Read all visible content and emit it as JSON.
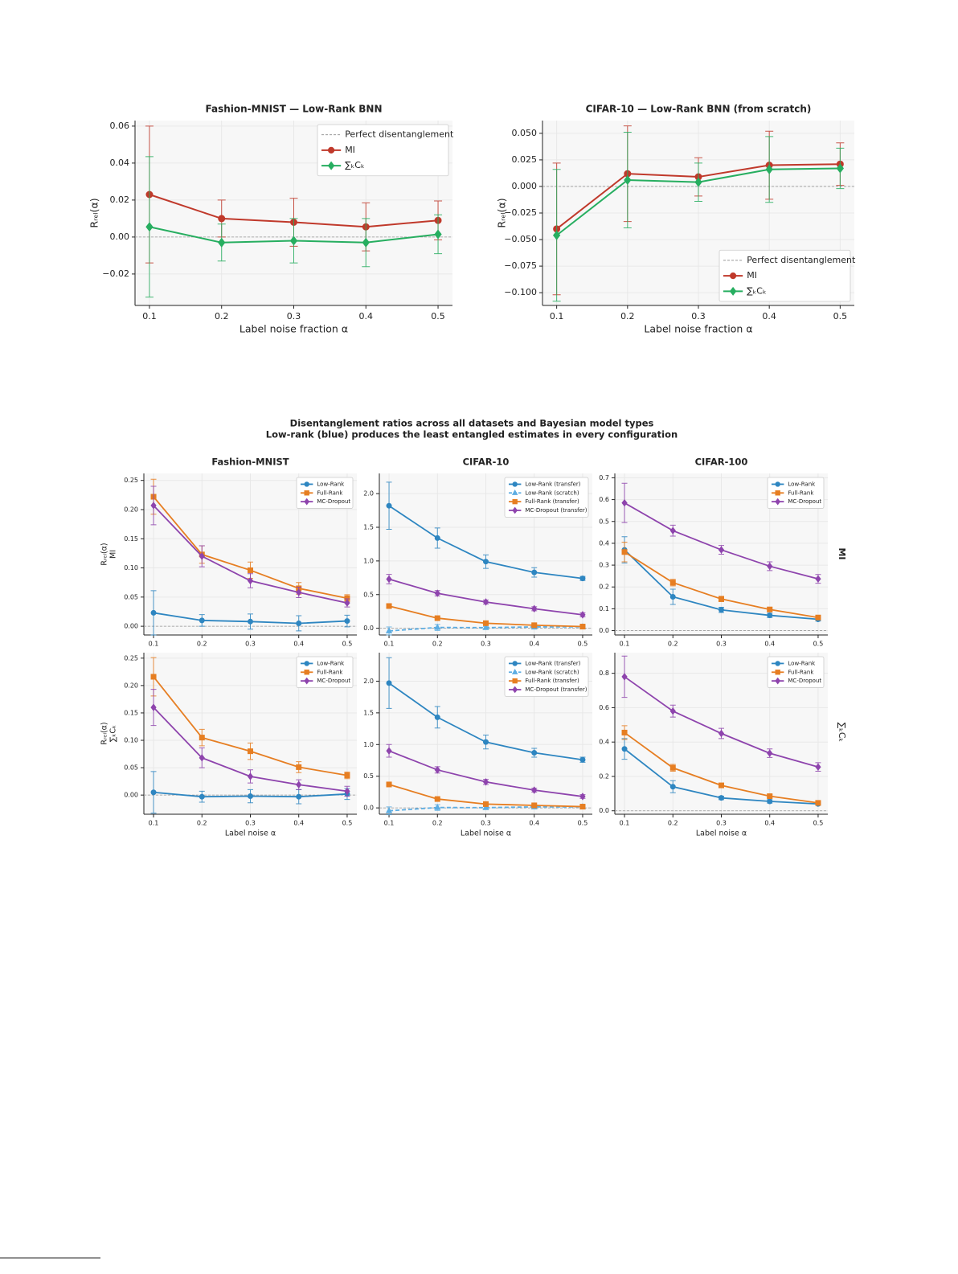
{
  "figure": {
    "title_lines": [
      "Disentanglement ratios across all datasets and Bayesian model types",
      "Low-rank (blue) produces the least entangled estimates in every configuration"
    ],
    "row_labels": [
      "MI",
      "∑ₖCₖ"
    ]
  },
  "chart_data": [
    {
      "type": "line",
      "title": "Fashion-MNIST — Low-Rank BNN",
      "xlabel": "Label noise fraction α",
      "ylabel": "Rᵣₑₗ(α)",
      "x": [
        0.1,
        0.2,
        0.3,
        0.4,
        0.5
      ],
      "xlim": [
        0.08,
        0.52
      ],
      "xticks": [
        0.1,
        0.2,
        0.3,
        0.4,
        0.5
      ],
      "ylim": [
        -0.037,
        0.063
      ],
      "yticks": [
        {
          "value": -0.02,
          "label": "−0.02"
        },
        {
          "value": 0,
          "label": "0.00"
        },
        0.02,
        0.04,
        0.06
      ],
      "grid": true,
      "legend": "upper right",
      "reference": {
        "value": 0,
        "name": "Perfect disentanglement"
      },
      "series": [
        {
          "name": "MI",
          "color": "#c0392b",
          "marker": "circle",
          "values": [
            0.023,
            0.01,
            0.008,
            0.0055,
            0.009
          ],
          "errors": [
            0.037,
            0.01,
            0.013,
            0.013,
            0.0105
          ]
        },
        {
          "name": "∑ₖCₖ",
          "color": "#27ae60",
          "marker": "diamond",
          "values": [
            0.0055,
            -0.003,
            -0.002,
            -0.003,
            0.0015
          ],
          "errors": [
            0.038,
            0.01,
            0.012,
            0.013,
            0.0105
          ]
        }
      ]
    },
    {
      "type": "line",
      "title": "CIFAR-10 — Low-Rank BNN (from scratch)",
      "xlabel": "Label noise fraction α",
      "ylabel": "Rᵣₑₗ(α)",
      "x": [
        0.1,
        0.2,
        0.3,
        0.4,
        0.5
      ],
      "xlim": [
        0.08,
        0.52
      ],
      "xticks": [
        0.1,
        0.2,
        0.3,
        0.4,
        0.5
      ],
      "ylim": [
        -0.112,
        0.062
      ],
      "yticks": [
        {
          "value": -0.1,
          "label": "−0.100"
        },
        {
          "value": -0.075,
          "label": "−0.075"
        },
        {
          "value": -0.05,
          "label": "−0.050"
        },
        {
          "value": -0.025,
          "label": "−0.025"
        },
        {
          "value": 0,
          "label": "0.000"
        },
        0.025,
        {
          "value": 0.05,
          "label": "0.050"
        }
      ],
      "grid": true,
      "legend": "lower right",
      "reference": {
        "value": 0,
        "name": "Perfect disentanglement"
      },
      "series": [
        {
          "name": "MI",
          "color": "#c0392b",
          "marker": "circle",
          "values": [
            -0.04,
            0.012,
            0.009,
            0.02,
            0.021
          ],
          "errors": [
            0.062,
            0.045,
            0.018,
            0.032,
            0.02
          ]
        },
        {
          "name": "∑ₖCₖ",
          "color": "#27ae60",
          "marker": "diamond",
          "values": [
            -0.046,
            0.006,
            0.004,
            0.016,
            0.017
          ],
          "errors": [
            0.062,
            0.045,
            0.018,
            0.031,
            0.019
          ]
        }
      ]
    },
    {
      "type": "line",
      "title": "Fashion-MNIST",
      "ylabel": [
        "MI",
        "Rᵣₑₗ(α)"
      ],
      "x": [
        0.1,
        0.2,
        0.3,
        0.4,
        0.5
      ],
      "xlim": [
        0.08,
        0.52
      ],
      "xticks": [
        0.1,
        0.2,
        0.3,
        0.4,
        0.5
      ],
      "ylim": [
        -0.015,
        0.262
      ],
      "yticks": [
        {
          "value": 0,
          "label": "0.00"
        },
        0.05,
        {
          "value": 0.1,
          "label": "0.10"
        },
        0.15,
        {
          "value": 0.2,
          "label": "0.20"
        },
        0.25
      ],
      "grid": true,
      "legend": "upper right",
      "reference": {
        "value": 0
      },
      "series": [
        {
          "name": "Low-Rank",
          "color": "#2e86c1",
          "marker": "circle",
          "values": [
            0.023,
            0.01,
            0.008,
            0.005,
            0.009
          ],
          "errors": [
            0.038,
            0.01,
            0.013,
            0.013,
            0.01
          ]
        },
        {
          "name": "Full-Rank",
          "color": "#e67e22",
          "marker": "square",
          "values": [
            0.222,
            0.123,
            0.096,
            0.065,
            0.048
          ],
          "errors": [
            0.03,
            0.015,
            0.014,
            0.01,
            0.006
          ]
        },
        {
          "name": "MC-Dropout",
          "color": "#8e44ad",
          "marker": "diamond",
          "values": [
            0.207,
            0.12,
            0.078,
            0.058,
            0.04
          ],
          "errors": [
            0.033,
            0.018,
            0.012,
            0.009,
            0.007
          ]
        }
      ]
    },
    {
      "type": "line",
      "title": "CIFAR-10",
      "x": [
        0.1,
        0.2,
        0.3,
        0.4,
        0.5
      ],
      "xlim": [
        0.08,
        0.52
      ],
      "xticks": [
        0.1,
        0.2,
        0.3,
        0.4,
        0.5
      ],
      "ylim": [
        -0.1,
        2.3
      ],
      "yticks": [
        {
          "value": 0,
          "label": "0.0"
        },
        0.5,
        {
          "value": 1,
          "label": "1.0"
        },
        1.5,
        {
          "value": 2,
          "label": "2.0"
        }
      ],
      "grid": true,
      "legend": "upper right",
      "reference": {
        "value": 0
      },
      "series": [
        {
          "name": "Low-Rank (transfer)",
          "color": "#2e86c1",
          "marker": "circle",
          "values": [
            1.82,
            1.34,
            0.99,
            0.83,
            0.74
          ],
          "errors": [
            0.35,
            0.15,
            0.1,
            0.07,
            0.03
          ]
        },
        {
          "name": "Low-Rank (scratch)",
          "color": "#5dade2",
          "marker": "triangle",
          "dashed": true,
          "values": [
            -0.04,
            0.012,
            0.009,
            0.02,
            0.021
          ],
          "errors": [
            0.06,
            0.045,
            0.018,
            0.032,
            0.02
          ]
        },
        {
          "name": "Full-Rank (transfer)",
          "color": "#e67e22",
          "marker": "square",
          "values": [
            0.33,
            0.15,
            0.075,
            0.045,
            0.025
          ],
          "errors": [
            0.02,
            0.01,
            0.01,
            0.01,
            0.005
          ]
        },
        {
          "name": "MC-Dropout (transfer)",
          "color": "#8e44ad",
          "marker": "diamond",
          "values": [
            0.73,
            0.52,
            0.39,
            0.29,
            0.2
          ],
          "errors": [
            0.07,
            0.04,
            0.03,
            0.03,
            0.03
          ]
        }
      ]
    },
    {
      "type": "line",
      "title": "CIFAR-100",
      "x": [
        0.1,
        0.2,
        0.3,
        0.4,
        0.5
      ],
      "xlim": [
        0.08,
        0.52
      ],
      "xticks": [
        0.1,
        0.2,
        0.3,
        0.4,
        0.5
      ],
      "ylim": [
        -0.02,
        0.72
      ],
      "yticks": [
        {
          "value": 0,
          "label": "0.0"
        },
        0.1,
        0.2,
        0.3,
        0.4,
        0.5,
        0.6,
        0.7
      ],
      "grid": true,
      "legend": "upper right",
      "reference": {
        "value": 0
      },
      "series": [
        {
          "name": "Low-Rank",
          "color": "#2e86c1",
          "marker": "circle",
          "values": [
            0.37,
            0.155,
            0.095,
            0.07,
            0.052
          ],
          "errors": [
            0.06,
            0.035,
            0.012,
            0.01,
            0.008
          ]
        },
        {
          "name": "Full-Rank",
          "color": "#e67e22",
          "marker": "square",
          "values": [
            0.36,
            0.22,
            0.145,
            0.097,
            0.06
          ],
          "errors": [
            0.045,
            0.015,
            0.012,
            0.008,
            0.006
          ]
        },
        {
          "name": "MC-Dropout",
          "color": "#8e44ad",
          "marker": "diamond",
          "values": [
            0.585,
            0.458,
            0.37,
            0.295,
            0.237
          ],
          "errors": [
            0.09,
            0.025,
            0.02,
            0.02,
            0.02
          ]
        }
      ]
    },
    {
      "type": "line",
      "xlabel": "Label noise α",
      "ylabel": [
        "∑ₖCₖ",
        "Rᵣₑₗ(α)"
      ],
      "x": [
        0.1,
        0.2,
        0.3,
        0.4,
        0.5
      ],
      "xlim": [
        0.08,
        0.52
      ],
      "xticks": [
        0.1,
        0.2,
        0.3,
        0.4,
        0.5
      ],
      "ylim": [
        -0.035,
        0.26
      ],
      "yticks": [
        {
          "value": 0,
          "label": "0.00"
        },
        0.05,
        {
          "value": 0.1,
          "label": "0.10"
        },
        0.15,
        {
          "value": 0.2,
          "label": "0.20"
        },
        0.25
      ],
      "grid": true,
      "legend": "upper right",
      "reference": {
        "value": 0
      },
      "series": [
        {
          "name": "Low-Rank",
          "color": "#2e86c1",
          "marker": "circle",
          "values": [
            0.005,
            -0.003,
            -0.002,
            -0.003,
            0.002
          ],
          "errors": [
            0.038,
            0.01,
            0.012,
            0.013,
            0.01
          ]
        },
        {
          "name": "Full-Rank",
          "color": "#e67e22",
          "marker": "square",
          "values": [
            0.216,
            0.105,
            0.08,
            0.051,
            0.036
          ],
          "errors": [
            0.035,
            0.015,
            0.015,
            0.01,
            0.006
          ]
        },
        {
          "name": "MC-Dropout",
          "color": "#8e44ad",
          "marker": "diamond",
          "values": [
            0.16,
            0.068,
            0.034,
            0.019,
            0.007
          ],
          "errors": [
            0.033,
            0.018,
            0.012,
            0.009,
            0.009
          ]
        }
      ]
    },
    {
      "type": "line",
      "xlabel": "Label noise α",
      "x": [
        0.1,
        0.2,
        0.3,
        0.4,
        0.5
      ],
      "xlim": [
        0.08,
        0.52
      ],
      "xticks": [
        0.1,
        0.2,
        0.3,
        0.4,
        0.5
      ],
      "ylim": [
        -0.1,
        2.45
      ],
      "yticks": [
        {
          "value": 0,
          "label": "0.0"
        },
        0.5,
        {
          "value": 1,
          "label": "1.0"
        },
        1.5,
        {
          "value": 2,
          "label": "2.0"
        }
      ],
      "grid": true,
      "legend": "upper right",
      "reference": {
        "value": 0
      },
      "series": [
        {
          "name": "Low-Rank (transfer)",
          "color": "#2e86c1",
          "marker": "circle",
          "values": [
            1.97,
            1.43,
            1.04,
            0.87,
            0.76
          ],
          "errors": [
            0.4,
            0.17,
            0.11,
            0.07,
            0.04
          ]
        },
        {
          "name": "Low-Rank (scratch)",
          "color": "#5dade2",
          "marker": "triangle",
          "dashed": true,
          "values": [
            -0.046,
            0.006,
            0.004,
            0.016,
            0.017
          ],
          "errors": [
            0.062,
            0.045,
            0.018,
            0.031,
            0.019
          ]
        },
        {
          "name": "Full-Rank (transfer)",
          "color": "#e67e22",
          "marker": "square",
          "values": [
            0.37,
            0.14,
            0.06,
            0.04,
            0.02
          ],
          "errors": [
            0.02,
            0.01,
            0.01,
            0.01,
            0.005
          ]
        },
        {
          "name": "MC-Dropout (transfer)",
          "color": "#8e44ad",
          "marker": "diamond",
          "values": [
            0.9,
            0.6,
            0.41,
            0.28,
            0.18
          ],
          "errors": [
            0.1,
            0.05,
            0.04,
            0.03,
            0.03
          ]
        }
      ]
    },
    {
      "type": "line",
      "xlabel": "Label noise α",
      "x": [
        0.1,
        0.2,
        0.3,
        0.4,
        0.5
      ],
      "xlim": [
        0.08,
        0.52
      ],
      "xticks": [
        0.1,
        0.2,
        0.3,
        0.4,
        0.5
      ],
      "ylim": [
        -0.02,
        0.92
      ],
      "yticks": [
        {
          "value": 0,
          "label": "0.0"
        },
        0.2,
        0.4,
        0.6,
        0.8
      ],
      "grid": true,
      "legend": "upper right",
      "reference": {
        "value": 0
      },
      "series": [
        {
          "name": "Low-Rank",
          "color": "#2e86c1",
          "marker": "circle",
          "values": [
            0.36,
            0.14,
            0.075,
            0.055,
            0.04
          ],
          "errors": [
            0.06,
            0.035,
            0.01,
            0.01,
            0.008
          ]
        },
        {
          "name": "Full-Rank",
          "color": "#e67e22",
          "marker": "square",
          "values": [
            0.455,
            0.25,
            0.148,
            0.085,
            0.046
          ],
          "errors": [
            0.04,
            0.02,
            0.012,
            0.008,
            0.006
          ]
        },
        {
          "name": "MC-Dropout",
          "color": "#8e44ad",
          "marker": "diamond",
          "values": [
            0.78,
            0.58,
            0.45,
            0.335,
            0.255
          ],
          "errors": [
            0.12,
            0.035,
            0.03,
            0.025,
            0.025
          ]
        }
      ]
    }
  ]
}
